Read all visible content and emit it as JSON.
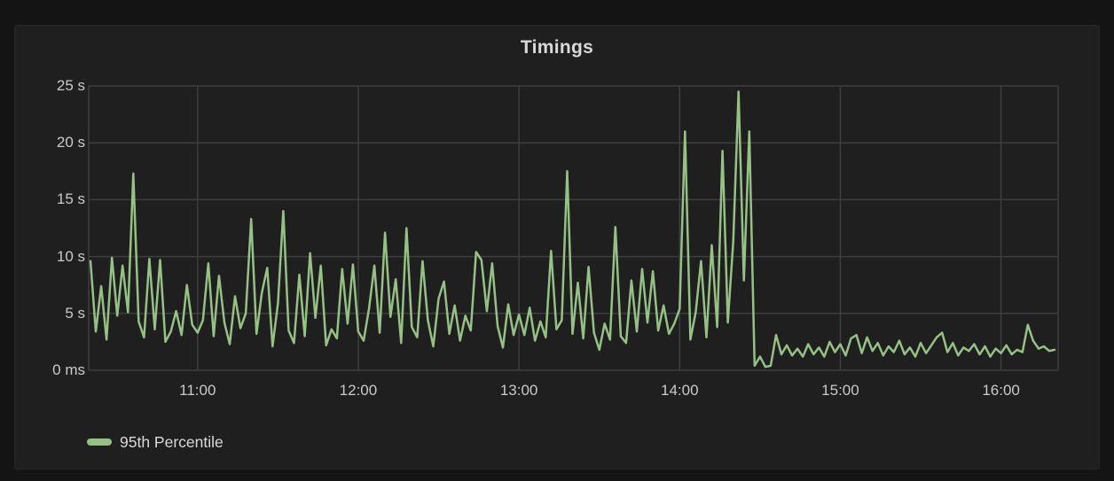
{
  "panel": {
    "title": "Timings"
  },
  "colors": {
    "outer_background": "#141414",
    "panel_background": "#1f1f20",
    "grid": "#3e3e41",
    "title_text": "#d8d9da",
    "tick_text": "#c9cacb",
    "series_green": "#96c185"
  },
  "legend": {
    "position": "bottom-left",
    "items": [
      {
        "label": "95th Percentile",
        "color": "#96c185"
      }
    ]
  },
  "chart_data": {
    "type": "line",
    "title": "Timings",
    "grid": true,
    "legend_position": "bottom-left",
    "x_axis": {
      "start": "10:20",
      "end": "16:20",
      "tick_labels": [
        "11:00",
        "12:00",
        "13:00",
        "14:00",
        "15:00",
        "16:00"
      ]
    },
    "y_axis": {
      "min": 0,
      "max": 25,
      "unit": "seconds",
      "tick_labels": [
        "25 s",
        "20 s",
        "15 s",
        "10 s",
        "5 s",
        "0 ms"
      ]
    },
    "series": [
      {
        "name": "95th Percentile",
        "color": "#96c185",
        "unit": "seconds",
        "start": "10:20",
        "interval_minutes": 2,
        "values": [
          9.6,
          3.4,
          7.4,
          2.7,
          9.9,
          4.8,
          9.2,
          5.1,
          17.3,
          4.3,
          2.9,
          9.8,
          3.6,
          9.7,
          2.5,
          3.4,
          5.2,
          3.1,
          7.5,
          4.0,
          3.3,
          4.4,
          9.4,
          3.0,
          8.3,
          4.2,
          2.3,
          6.5,
          3.7,
          5.0,
          13.3,
          3.2,
          6.8,
          9.0,
          2.1,
          5.9,
          14.0,
          3.5,
          2.4,
          8.4,
          3.0,
          10.3,
          4.6,
          9.2,
          2.2,
          3.6,
          2.8,
          8.9,
          4.1,
          9.3,
          3.4,
          2.6,
          5.4,
          9.2,
          3.3,
          12.1,
          4.7,
          8.0,
          2.4,
          12.5,
          3.8,
          2.9,
          9.6,
          4.4,
          2.1,
          6.3,
          7.8,
          3.2,
          5.7,
          2.6,
          4.8,
          3.5,
          10.4,
          9.7,
          5.2,
          9.4,
          3.9,
          2.0,
          5.8,
          3.1,
          4.9,
          3.1,
          5.5,
          2.6,
          4.3,
          2.9,
          10.5,
          3.6,
          4.4,
          17.5,
          3.2,
          7.7,
          2.8,
          9.1,
          3.3,
          1.8,
          4.1,
          2.7,
          12.6,
          3.0,
          2.4,
          7.9,
          3.4,
          8.9,
          4.2,
          8.7,
          3.5,
          5.7,
          3.2,
          4.1,
          5.4,
          21.0,
          2.7,
          5.1,
          9.6,
          2.9,
          11.0,
          3.8,
          19.3,
          4.2,
          11.3,
          24.5,
          7.9,
          21.0,
          0.4,
          1.2,
          0.3,
          0.4,
          3.1,
          1.4,
          2.2,
          1.3,
          1.9,
          1.2,
          2.3,
          1.4,
          2.0,
          1.2,
          2.5,
          1.6,
          2.3,
          1.3,
          2.8,
          3.1,
          1.5,
          2.9,
          1.7,
          2.4,
          1.3,
          2.1,
          1.6,
          2.6,
          1.4,
          2.0,
          1.2,
          2.4,
          1.5,
          2.2,
          2.9,
          3.3,
          1.6,
          2.4,
          1.3,
          2.0,
          1.7,
          2.3,
          1.4,
          2.1,
          1.2,
          1.9,
          1.5,
          2.2,
          1.4,
          1.8,
          1.6,
          4.0,
          2.6,
          1.9,
          2.1,
          1.7,
          1.8
        ]
      }
    ]
  }
}
